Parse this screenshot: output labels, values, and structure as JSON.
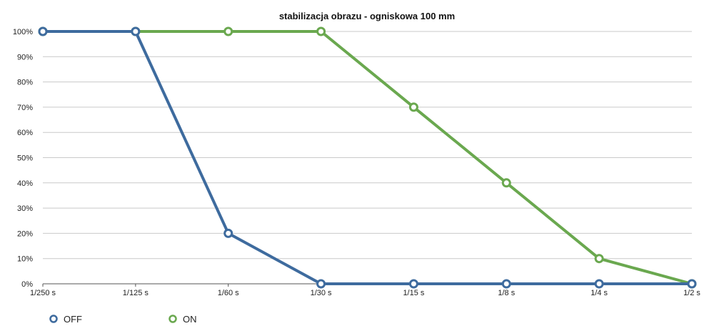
{
  "chart_data": {
    "type": "line",
    "title": "stabilizacja obrazu - ogniskowa 100 mm",
    "xlabel": "",
    "ylabel": "",
    "categories": [
      "1/250 s",
      "1/125 s",
      "1/60 s",
      "1/30 s",
      "1/15 s",
      "1/8 s",
      "1/4 s",
      "1/2 s"
    ],
    "yticks": [
      "0%",
      "10%",
      "20%",
      "30%",
      "40%",
      "50%",
      "60%",
      "70%",
      "80%",
      "90%",
      "100%"
    ],
    "ylim": [
      0,
      100
    ],
    "grid": true,
    "legend_position": "bottom-left",
    "series": [
      {
        "name": "OFF",
        "color": "#3e6b9e",
        "values": [
          100,
          100,
          20,
          0,
          0,
          0,
          0,
          0
        ]
      },
      {
        "name": "ON",
        "color": "#6aa84f",
        "values": [
          100,
          100,
          100,
          100,
          70,
          40,
          10,
          0
        ]
      }
    ]
  }
}
